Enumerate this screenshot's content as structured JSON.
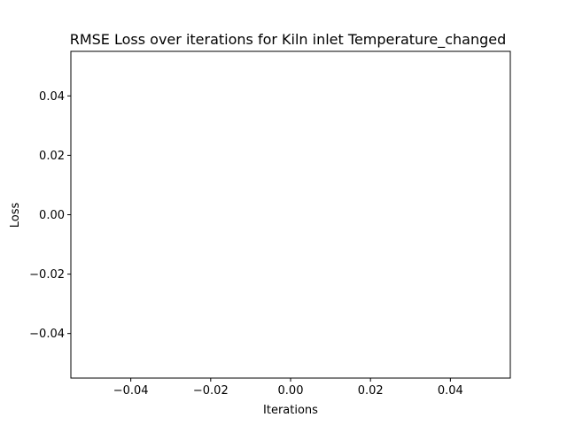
{
  "chart_data": {
    "type": "line",
    "title": "RMSE Loss over iterations for Kiln inlet Temperature_changed",
    "xlabel": "Iterations",
    "ylabel": "Loss",
    "xlim": [
      -0.055,
      0.055
    ],
    "ylim": [
      -0.055,
      0.055
    ],
    "x_ticks": [
      -0.04,
      -0.02,
      0.0,
      0.02,
      0.04
    ],
    "x_tick_labels": [
      "−0.04",
      "−0.02",
      "0.00",
      "0.02",
      "0.04"
    ],
    "y_ticks": [
      -0.04,
      -0.02,
      0.0,
      0.02,
      0.04
    ],
    "y_tick_labels": [
      "−0.04",
      "−0.02",
      "0.00",
      "0.02",
      "0.04"
    ],
    "grid": false,
    "legend": null,
    "series": [
      {
        "x": [],
        "y": []
      }
    ],
    "colors": {
      "axes": "#000000",
      "background": "#ffffff",
      "line": "#1f77b4"
    }
  }
}
